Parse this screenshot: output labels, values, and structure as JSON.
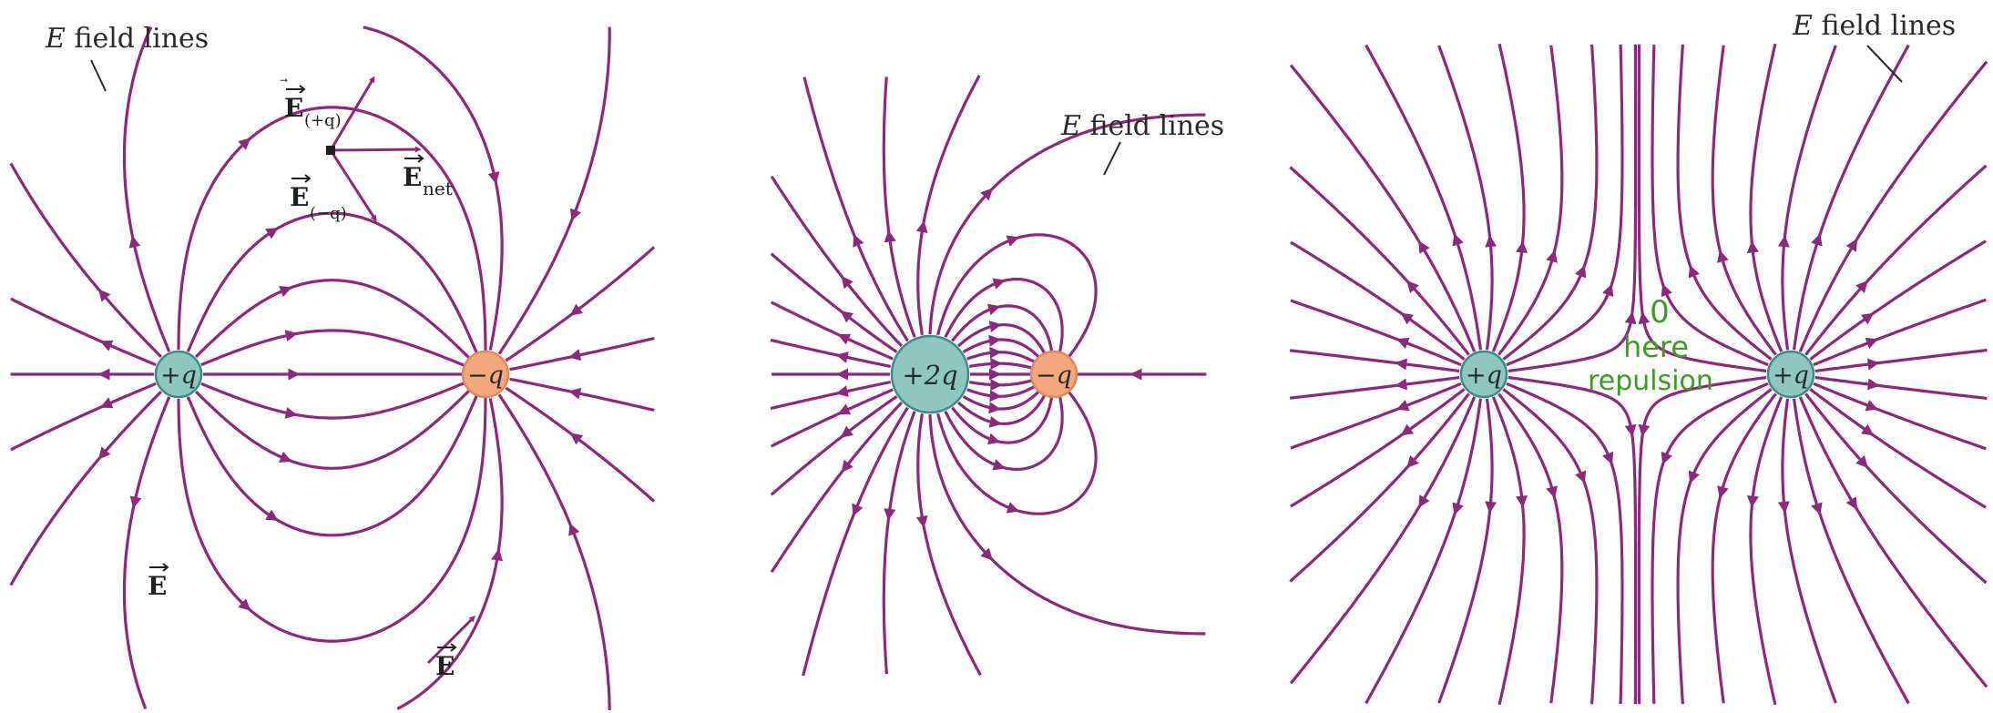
{
  "style": {
    "line_color": "#8b2a7a",
    "positive_fill": "#8fc6bf",
    "negative_fill": "#f4a67c",
    "charge_stroke": "#3f8a86",
    "annotation_color": "#3f9a27"
  },
  "panels": [
    {
      "id": "dipole",
      "callout": {
        "italic": "E",
        "text": " field lines"
      },
      "charges": [
        {
          "label": "+q",
          "sign": "positive"
        },
        {
          "label": "−q",
          "sign": "negative"
        }
      ],
      "vector_labels": {
        "e_plus": "E",
        "e_plus_sub": "(+q)",
        "e_minus": "E",
        "e_minus_sub": "(−q)",
        "e_net": "E",
        "e_net_sub": "net",
        "e_left": "E",
        "e_bottom": "E"
      }
    },
    {
      "id": "unequal",
      "callout": {
        "italic": "E",
        "text": " field lines"
      },
      "charges": [
        {
          "label": "+2q",
          "sign": "positive"
        },
        {
          "label": "−q",
          "sign": "negative"
        }
      ]
    },
    {
      "id": "like",
      "callout": {
        "italic": "E",
        "text": " field lines"
      },
      "charges": [
        {
          "label": "+q",
          "sign": "positive"
        },
        {
          "label": "+q",
          "sign": "positive"
        }
      ],
      "annotation": [
        "0",
        "here",
        "repulsion"
      ]
    }
  ]
}
